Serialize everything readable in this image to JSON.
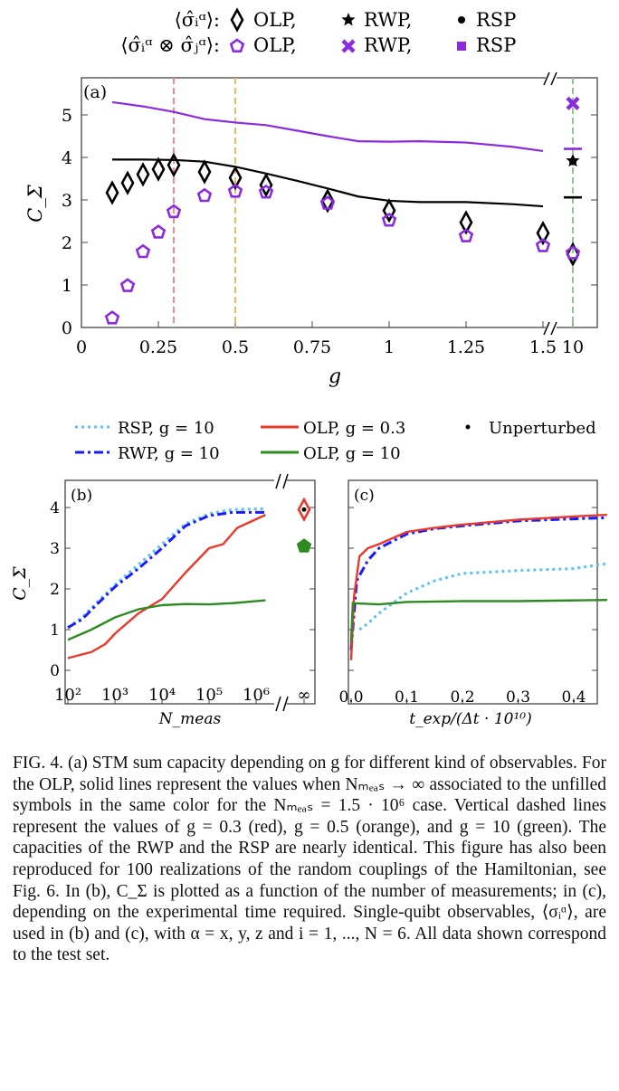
{
  "legend_top": {
    "row1_label": "⟨σ̂ᵢᵅ⟩:",
    "row2_label": "⟨σ̂ᵢᵅ ⊗ σ̂ⱼᵅ⟩:",
    "items": [
      "OLP,",
      "RWP,",
      "RSP"
    ]
  },
  "legend_bc": {
    "rsp": "RSP, g = 10",
    "rwp": "RWP, g = 10",
    "olp03": "OLP, g = 0.3",
    "olp10": "OLP, g = 10",
    "unperturbed": "Unperturbed"
  },
  "colors": {
    "black": "#000000",
    "purple": "#8a2be2",
    "red": "#e8392a",
    "blue": "#1a1aff",
    "lightblue": "#5bc0f5",
    "green": "#2e8b22",
    "vred": "#f08a8a",
    "vorange": "#f5b561",
    "vgreen": "#8cc98c"
  },
  "chart_data": [
    {
      "panel_label": "(a)",
      "type": "scatter",
      "xlabel": "g",
      "ylabel": "C_Σ",
      "ylim": [
        0,
        5.85
      ],
      "xticks": [
        "0",
        "0.25",
        "0.5",
        "0.75",
        "1",
        "1.25",
        "1.5",
        "10"
      ],
      "yticks": [
        "0",
        "1",
        "2",
        "3",
        "4",
        "5"
      ],
      "x_axis_break": [
        1.5,
        10
      ],
      "vertical_dashed_lines": [
        {
          "g": 0.3,
          "color": "red"
        },
        {
          "g": 0.5,
          "color": "orange"
        },
        {
          "g": 10,
          "color": "green"
        }
      ],
      "series": [
        {
          "name": "⟨σ̂ᵢᵅ⟩ OLP",
          "marker": "diamond",
          "color": "#000000",
          "x": [
            0.1,
            0.15,
            0.2,
            0.25,
            0.3,
            0.4,
            0.5,
            0.6,
            0.8,
            1,
            1.25,
            1.5,
            10
          ],
          "y": [
            3.17,
            3.4,
            3.6,
            3.72,
            3.82,
            3.66,
            3.52,
            3.35,
            2.98,
            2.75,
            2.47,
            2.22,
            1.72
          ]
        },
        {
          "name": "⟨σ̂ᵢᵅ ⊗ σ̂ⱼᵅ⟩ OLP",
          "marker": "pentagon",
          "color": "#8a2be2",
          "x": [
            0.1,
            0.15,
            0.2,
            0.25,
            0.3,
            0.4,
            0.5,
            0.6,
            0.8,
            1,
            1.25,
            1.5,
            10
          ],
          "y": [
            0.22,
            0.98,
            1.78,
            2.24,
            2.72,
            3.1,
            3.2,
            3.18,
            2.92,
            2.52,
            2.15,
            1.92,
            1.75
          ]
        },
        {
          "marker": "line",
          "color": "#000000",
          "x": [
            0.1,
            0.2,
            0.3,
            0.4,
            0.5,
            0.6,
            0.7,
            0.8,
            0.9,
            1,
            1.1,
            1.25,
            1.4,
            1.5
          ],
          "y": [
            3.95,
            3.95,
            3.94,
            3.9,
            3.78,
            3.62,
            3.45,
            3.27,
            3.08,
            2.98,
            2.95,
            2.95,
            2.9,
            2.85
          ]
        },
        {
          "marker": "line",
          "color": "#8a2be2",
          "x": [
            0.1,
            0.2,
            0.3,
            0.4,
            0.5,
            0.6,
            0.7,
            0.8,
            0.9,
            1,
            1.1,
            1.25,
            1.4,
            1.5
          ],
          "y": [
            5.3,
            5.2,
            5.07,
            4.9,
            4.82,
            4.76,
            4.63,
            4.5,
            4.38,
            4.37,
            4.38,
            4.35,
            4.25,
            4.15
          ]
        },
        {
          "name": "⟨σ̂ᵢᵅ⟩ RWP",
          "marker": "star",
          "color": "#000000",
          "x": [
            10
          ],
          "y": [
            3.92
          ]
        },
        {
          "name": "⟨σ̂ᵢᵅ⟩ RSP",
          "marker": "dot",
          "color": "#000000",
          "x": [
            10
          ],
          "y": [
            3.9
          ]
        },
        {
          "name": "⟨σ̂ᵢᵅ ⊗ σ̂ⱼᵅ⟩ RWP",
          "marker": "cross",
          "color": "#8a2be2",
          "x": [
            10
          ],
          "y": [
            5.27
          ]
        },
        {
          "marker": "hbar",
          "color": "#8a2be2",
          "x": [
            10
          ],
          "y": [
            4.2
          ]
        },
        {
          "marker": "hbar",
          "color": "#000000",
          "x": [
            10
          ],
          "y": [
            3.06
          ]
        }
      ]
    },
    {
      "panel_label": "(b)",
      "type": "line",
      "xlabel": "N_meas",
      "ylabel": "C_Σ",
      "xscale": "log",
      "xticks": [
        "10²",
        "10³",
        "10⁴",
        "10⁵",
        "10⁶",
        "∞"
      ],
      "yticks": [
        "0",
        "1",
        "2",
        "3",
        "4"
      ],
      "series": [
        {
          "name": "RSP, g = 10",
          "style": "dotted",
          "color": "#5bc0f5",
          "log10_x": [
            2,
            2.3,
            2.6,
            3,
            3.5,
            4,
            4.5,
            5,
            5.5,
            6.2
          ],
          "y": [
            1.05,
            1.3,
            1.65,
            2.1,
            2.6,
            3.1,
            3.6,
            3.85,
            3.95,
            3.97
          ]
        },
        {
          "name": "RWP, g = 10",
          "style": "dashdot",
          "color": "#1a1aff",
          "log10_x": [
            2,
            2.3,
            2.6,
            3,
            3.5,
            4,
            4.5,
            5,
            5.5,
            6.2
          ],
          "y": [
            1.05,
            1.25,
            1.6,
            2.05,
            2.5,
            3.0,
            3.55,
            3.8,
            3.88,
            3.88
          ]
        },
        {
          "name": "OLP, g = 0.3",
          "style": "solid",
          "color": "#e8392a",
          "log10_x": [
            2,
            2.5,
            2.8,
            3,
            3.5,
            4,
            4.5,
            5,
            5.3,
            5.6,
            6.2
          ],
          "y": [
            0.3,
            0.45,
            0.65,
            0.9,
            1.4,
            1.75,
            2.4,
            3.0,
            3.1,
            3.5,
            3.82
          ]
        },
        {
          "name": "OLP, g = 10",
          "style": "solid",
          "color": "#2e8b22",
          "log10_x": [
            2,
            2.5,
            3,
            3.5,
            4,
            4.5,
            5,
            5.5,
            6.2
          ],
          "y": [
            0.75,
            1.0,
            1.3,
            1.5,
            1.6,
            1.63,
            1.62,
            1.65,
            1.72
          ]
        }
      ],
      "infinity_points": [
        {
          "marker": "diamond",
          "color": "#e8392a",
          "y": 3.95,
          "unperturbed_dot": true
        },
        {
          "marker": "pentagon",
          "color": "#2e8b22",
          "y": 3.05
        }
      ]
    },
    {
      "panel_label": "(c)",
      "type": "line",
      "xlabel": "t_exp/(Δt · 10¹⁰)",
      "xlim": [
        0,
        0.46
      ],
      "xticks": [
        "0.0",
        "0.1",
        "0.2",
        "0.3",
        "0.4"
      ],
      "series": [
        {
          "name": "RSP, g = 10",
          "style": "dotted",
          "color": "#5bc0f5",
          "x": [
            0.015,
            0.03,
            0.05,
            0.08,
            0.1,
            0.15,
            0.2,
            0.3,
            0.4,
            0.46
          ],
          "y": [
            1.0,
            1.15,
            1.4,
            1.7,
            1.9,
            2.2,
            2.38,
            2.45,
            2.5,
            2.62
          ]
        },
        {
          "name": "RWP, g = 10",
          "style": "dashdot",
          "color": "#1a1aff",
          "x": [
            0,
            0.01,
            0.03,
            0.05,
            0.1,
            0.15,
            0.2,
            0.3,
            0.4,
            0.46
          ],
          "y": [
            0.5,
            2.2,
            2.7,
            3.0,
            3.35,
            3.48,
            3.55,
            3.67,
            3.72,
            3.75
          ]
        },
        {
          "name": "OLP, g = 0.3",
          "style": "solid",
          "color": "#e8392a",
          "x": [
            0,
            0.005,
            0.015,
            0.03,
            0.05,
            0.1,
            0.15,
            0.2,
            0.3,
            0.4,
            0.46
          ],
          "y": [
            0.25,
            1.8,
            2.8,
            3.0,
            3.1,
            3.4,
            3.5,
            3.58,
            3.7,
            3.78,
            3.82
          ]
        },
        {
          "name": "OLP, g = 10",
          "style": "solid",
          "color": "#2e8b22",
          "x": [
            0,
            0.003,
            0.05,
            0.1,
            0.2,
            0.3,
            0.46
          ],
          "y": [
            0.7,
            1.65,
            1.62,
            1.68,
            1.7,
            1.7,
            1.73
          ]
        }
      ]
    }
  ],
  "caption": "FIG. 4. (a) STM sum capacity depending on g for different kind of observables. For the OLP, solid lines represent the values when Nₘₑₐₛ → ∞ associated to the unfilled symbols in the same color for the Nₘₑₐₛ = 1.5 · 10⁶ case. Vertical dashed lines represent the values of g = 0.3 (red), g = 0.5 (orange), and g = 10 (green). The capacities of the RWP and the RSP are nearly identical. This figure has also been reproduced for 100 realizations of the random couplings of the Hamiltonian, see Fig. 6. In (b), C_Σ is plotted as a function of the number of measurements; in (c), depending on the experimental time required. Single-quibt observables, ⟨σᵢᵅ⟩, are used in (b) and (c), with α = x, y, z and i = 1, ..., N = 6. All data shown correspond to the test set."
}
